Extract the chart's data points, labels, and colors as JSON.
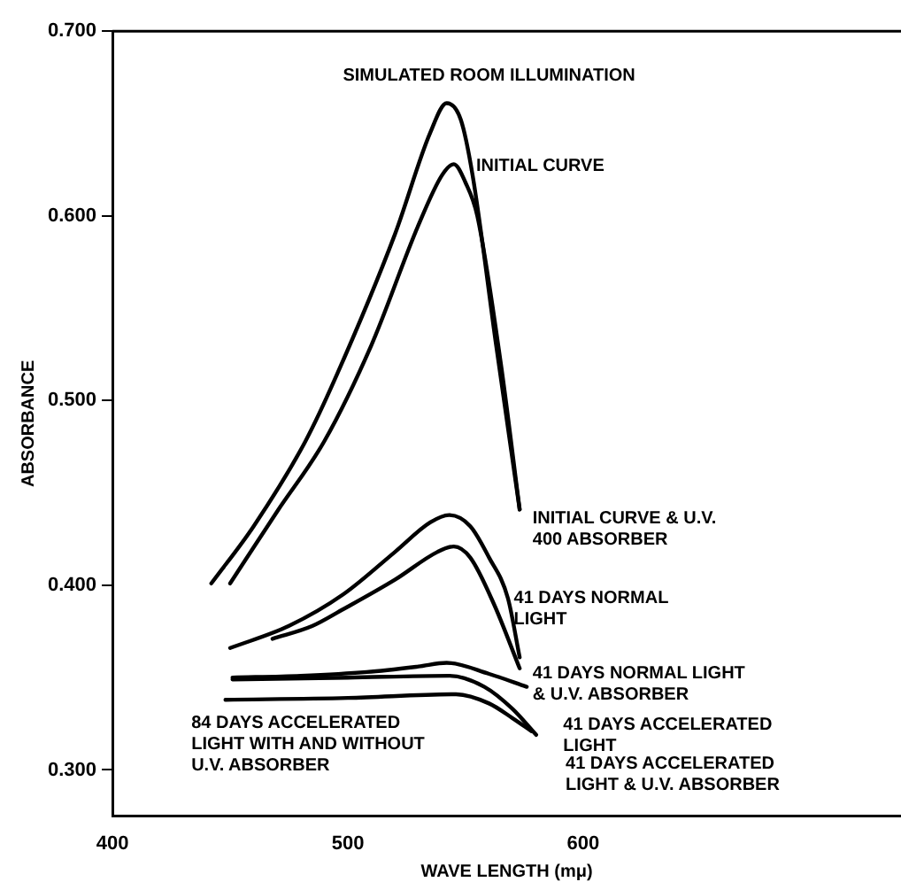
{
  "chart_data": {
    "type": "line",
    "title": "SIMULATED ROOM ILLUMINATION",
    "xlabel": "WAVE LENGTH (mμ)",
    "ylabel": "ABSORBANCE",
    "xlim": [
      400,
      735
    ],
    "ylim": [
      0.275,
      0.7
    ],
    "xticks": [
      400,
      500,
      600
    ],
    "yticks": [
      {
        "value": 0.3,
        "label": "0.300"
      },
      {
        "value": 0.4,
        "label": "0.400"
      },
      {
        "value": 0.5,
        "label": "0.500"
      },
      {
        "value": 0.6,
        "label": "0.600"
      },
      {
        "value": 0.7,
        "label": "0.700"
      }
    ],
    "grid": false,
    "legend": false,
    "marker": "none",
    "line_style": "solid",
    "series": [
      {
        "color": "#000000",
        "x": [
          442,
          460,
          482,
          495,
          520,
          535,
          542,
          548,
          553,
          563,
          573
        ],
        "values": [
          0.401,
          0.432,
          0.478,
          0.513,
          0.59,
          0.645,
          0.661,
          0.652,
          0.622,
          0.53,
          0.441
        ]
      },
      {
        "color": "#000000",
        "x": [
          450,
          470,
          490,
          510,
          530,
          540,
          545,
          550,
          555,
          565,
          573
        ],
        "values": [
          0.401,
          0.44,
          0.478,
          0.53,
          0.595,
          0.622,
          0.628,
          0.618,
          0.6,
          0.52,
          0.441
        ]
      },
      {
        "color": "#000000",
        "x": [
          450,
          475,
          498,
          520,
          535,
          543,
          552,
          560,
          568,
          573
        ],
        "values": [
          0.366,
          0.378,
          0.395,
          0.418,
          0.434,
          0.438,
          0.432,
          0.415,
          0.393,
          0.361
        ]
      },
      {
        "color": "#000000",
        "x": [
          468,
          485,
          498,
          520,
          538,
          545,
          552,
          562,
          573
        ],
        "values": [
          0.371,
          0.378,
          0.387,
          0.403,
          0.418,
          0.421,
          0.415,
          0.39,
          0.355
        ]
      },
      {
        "color": "#000000",
        "x": [
          451,
          480,
          508,
          530,
          542,
          560,
          576
        ],
        "values": [
          0.35,
          0.351,
          0.353,
          0.356,
          0.358,
          0.352,
          0.345
        ]
      },
      {
        "color": "#000000",
        "x": [
          451,
          500,
          543,
          558,
          570,
          580
        ],
        "values": [
          0.349,
          0.35,
          0.351,
          0.345,
          0.333,
          0.319
        ]
      },
      {
        "color": "#000000",
        "x": [
          448,
          500,
          546,
          560,
          570,
          578
        ],
        "values": [
          0.338,
          0.339,
          0.341,
          0.336,
          0.328,
          0.321
        ]
      }
    ],
    "annotations": [
      "INITIAL CURVE",
      "INITIAL CURVE & U.V.\n400 ABSORBER",
      "41 DAYS NORMAL\nLIGHT",
      "41 DAYS NORMAL LIGHT\n& U.V. ABSORBER",
      "41 DAYS ACCELERATED\nLIGHT",
      "41 DAYS ACCELERATED\nLIGHT & U.V. ABSORBER",
      "84 DAYS ACCELERATED\nLIGHT WITH AND WITHOUT\nU.V. ABSORBER"
    ]
  }
}
